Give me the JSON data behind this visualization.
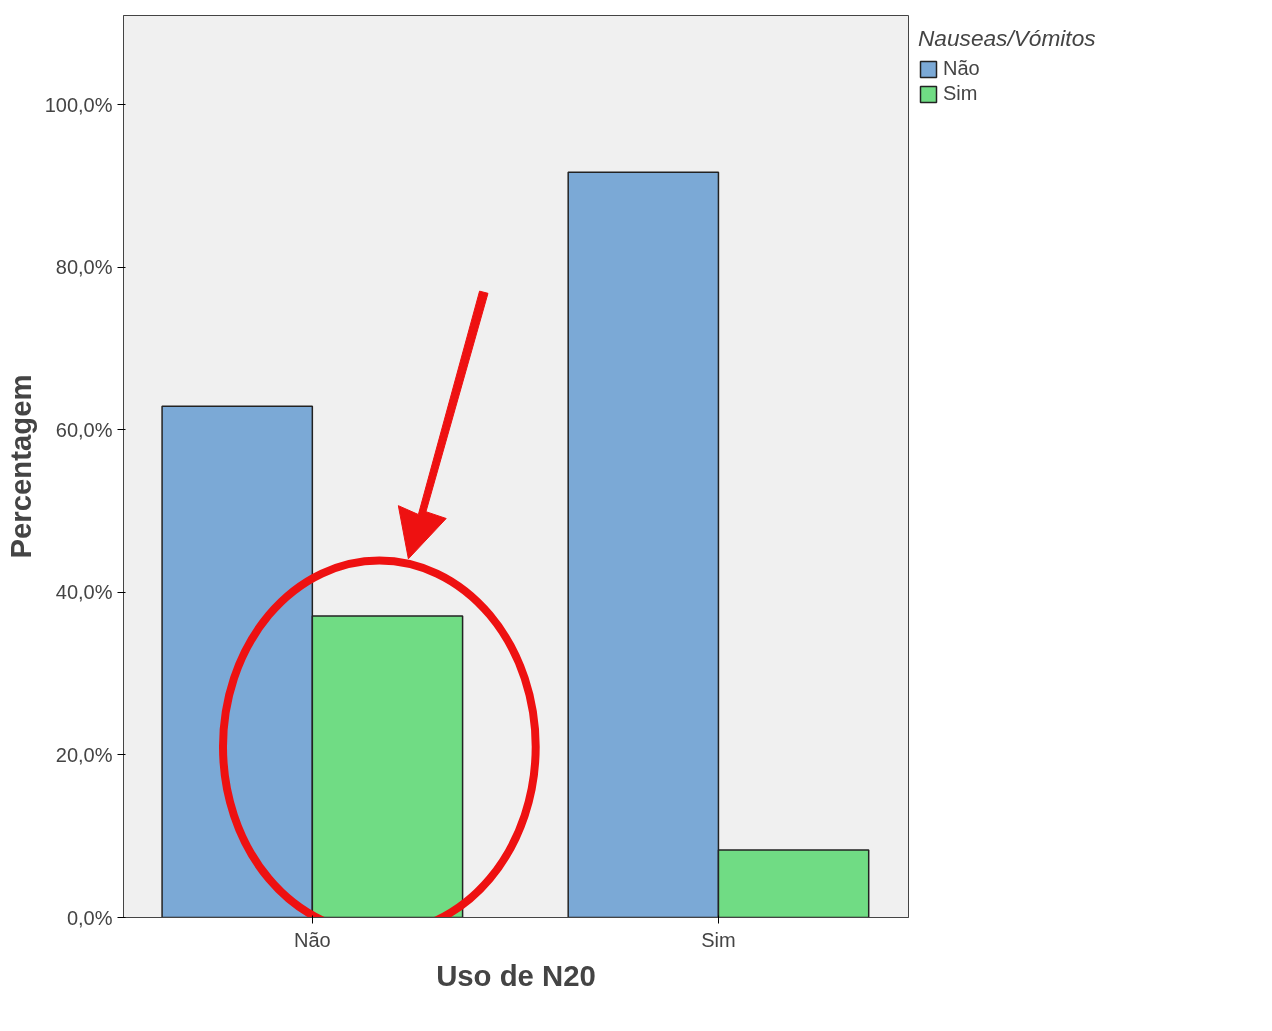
{
  "chart_data": {
    "type": "bar",
    "xlabel": "Uso de N20",
    "ylabel": "Percentagem",
    "legend_title": "Nauseas/Vómitos",
    "categories": [
      "Não",
      "Sim"
    ],
    "series": [
      {
        "name": "Não",
        "color": "#7ba9d6",
        "values": [
          62.9,
          91.7
        ]
      },
      {
        "name": "Sim",
        "color": "#70dc84",
        "values": [
          37.1,
          8.3
        ]
      }
    ],
    "ylim": [
      0,
      111
    ],
    "yticks": [
      {
        "value": 0,
        "label": "0,0%"
      },
      {
        "value": 20,
        "label": "20,0%"
      },
      {
        "value": 40,
        "label": "40,0%"
      },
      {
        "value": 60,
        "label": "60,0%"
      },
      {
        "value": 80,
        "label": "80,0%"
      },
      {
        "value": 100,
        "label": "100,0%"
      }
    ],
    "grid": false,
    "legend": "top right"
  }
}
